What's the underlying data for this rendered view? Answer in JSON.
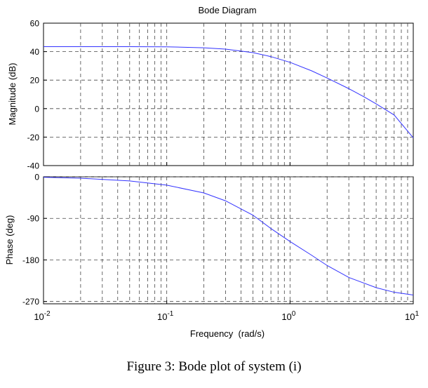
{
  "caption": "Figure 3: Bode plot of system (i)",
  "chart_data": {
    "type": "line",
    "title": "Bode Diagram",
    "xlabel": "Frequency  (rad/s)",
    "xscale": "log",
    "xlim": [
      0.01,
      10
    ],
    "x_ticks": [
      {
        "base": "10",
        "exp": "-2"
      },
      {
        "base": "10",
        "exp": "-1"
      },
      {
        "base": "10",
        "exp": "0"
      },
      {
        "base": "10",
        "exp": "1"
      }
    ],
    "grid": true,
    "line_color": "#3333ff",
    "panels": [
      {
        "name": "magnitude",
        "ylabel": "Magnitude (dB)",
        "ylim": [
          -40,
          60
        ],
        "y_ticks": [
          "60",
          "40",
          "20",
          "0",
          "-20",
          "-40"
        ],
        "y_tick_values": [
          60,
          40,
          20,
          0,
          -20,
          -40
        ],
        "x": [
          0.01,
          0.02,
          0.05,
          0.1,
          0.2,
          0.3,
          0.5,
          0.7,
          1,
          1.5,
          2,
          3,
          4,
          5,
          7,
          10
        ],
        "y": [
          43.5,
          43.5,
          43.5,
          43.4,
          42.7,
          41.8,
          39.3,
          36.5,
          32.5,
          26.5,
          21.5,
          14.0,
          8.2,
          3.3,
          -4.5,
          -20.5
        ]
      },
      {
        "name": "phase",
        "ylabel": "Phase (deg)",
        "ylim": [
          -275,
          0
        ],
        "y_ticks": [
          "0",
          "-90",
          "-180",
          "-270"
        ],
        "y_tick_values": [
          0,
          -90,
          -180,
          -270
        ],
        "x": [
          0.01,
          0.02,
          0.05,
          0.1,
          0.2,
          0.3,
          0.5,
          0.7,
          1,
          1.5,
          2,
          3,
          5,
          7,
          10
        ],
        "y": [
          -1,
          -3,
          -9,
          -18,
          -35,
          -52,
          -83,
          -112,
          -140,
          -170,
          -192,
          -218,
          -240,
          -250,
          -256
        ]
      }
    ]
  }
}
